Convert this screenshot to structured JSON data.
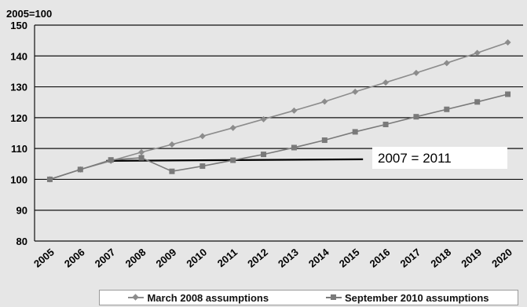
{
  "chart_data": {
    "type": "line",
    "ylabel": "2005=100",
    "x": [
      "2005",
      "2006",
      "2007",
      "2008",
      "2009",
      "2010",
      "2011",
      "2012",
      "2013",
      "2014",
      "2015",
      "2016",
      "2017",
      "2018",
      "2019",
      "2020"
    ],
    "ylim": [
      80,
      150
    ],
    "yticks": [
      80,
      90,
      100,
      110,
      120,
      130,
      140,
      150
    ],
    "grid": "horizontal",
    "series": [
      {
        "name": "March 2008 assumptions",
        "marker": "diamond",
        "color": "#8c8c8c",
        "values": [
          100,
          103.2,
          106.0,
          108.8,
          111.3,
          114.0,
          116.7,
          119.5,
          122.3,
          125.2,
          128.4,
          131.4,
          134.5,
          137.7,
          141.0,
          144.4
        ]
      },
      {
        "name": "September 2010 assumptions",
        "marker": "square",
        "color": "#7a7a7a",
        "values": [
          100,
          103.2,
          106.3,
          107.0,
          102.6,
          104.3,
          106.2,
          108.1,
          110.3,
          112.7,
          115.4,
          117.8,
          120.3,
          122.7,
          125.1,
          127.6
        ]
      }
    ],
    "annotation": {
      "text": "2007 = 2011",
      "line_from": [
        "2007",
        106.0
      ],
      "line_to": [
        "2015",
        106.5
      ]
    },
    "legend_position": "bottom"
  }
}
